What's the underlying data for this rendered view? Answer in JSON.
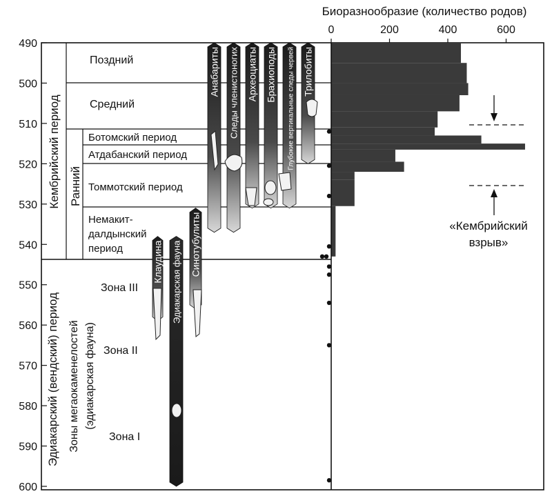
{
  "chart_data": {
    "type": "bar",
    "orientation": "horizontal",
    "title": "Биоразнообразие (количество родов)",
    "y_axis": {
      "ticks": [
        490,
        500,
        510,
        520,
        530,
        540,
        550,
        560,
        570,
        580,
        590,
        600
      ],
      "ylim": [
        490,
        600
      ]
    },
    "x_axis": {
      "ticks": [
        0,
        200,
        400,
        600
      ],
      "xlim": [
        0,
        650
      ]
    },
    "series": [
      {
        "from": 490,
        "to": 495,
        "value": 445
      },
      {
        "from": 495,
        "to": 500,
        "value": 465
      },
      {
        "from": 500,
        "to": 503,
        "value": 470
      },
      {
        "from": 503,
        "to": 507,
        "value": 440
      },
      {
        "from": 507,
        "to": 511,
        "value": 365
      },
      {
        "from": 511,
        "to": 513,
        "value": 355
      },
      {
        "from": 513,
        "to": 515,
        "value": 515
      },
      {
        "from": 515,
        "to": 516.5,
        "value": 665
      },
      {
        "from": 516.5,
        "to": 519.5,
        "value": 220
      },
      {
        "from": 519.5,
        "to": 522,
        "value": 250
      },
      {
        "from": 522,
        "to": 524,
        "value": 80
      },
      {
        "from": 524,
        "to": 530.5,
        "value": 80
      },
      {
        "from": 530.5,
        "to": 543,
        "value": 15
      }
    ],
    "ages": [
      512,
      520.5,
      528,
      540.5,
      543,
      543,
      545.5,
      547.5,
      554.5,
      565,
      598.5
    ],
    "annotation": "«Кембрийский взрыв»",
    "annotation_lines": [
      "«Кембрийский",
      "взрыв»"
    ]
  },
  "stratigraphy": {
    "cambrian_label": "Кембрийский период",
    "early_label": "Ранний",
    "ediacaran_label": "Эдиакарский (вендский) период",
    "zones_label_1": "Зоны мегаокаменелостей",
    "zones_label_2": "(эдиакарская фауна)",
    "late": "Поздний",
    "middle": "Средний",
    "botomian": "Ботомский период",
    "atdabanian": "Атдабанский период",
    "tommotian": "Томмотский период",
    "nemakit_1": "Немакит-",
    "nemakit_2": "далдынский",
    "nemakit_3": "период",
    "zone3": "Зона III",
    "zone2": "Зона II",
    "zone1": "Зона I"
  },
  "taxa": [
    {
      "name": "Клаудина",
      "top": 538,
      "bottom": 559
    },
    {
      "name": "Эдиакарская фауна",
      "top": 538,
      "bottom": 600
    },
    {
      "name": "Синотубулиты",
      "top": 531,
      "bottom": 556
    },
    {
      "name": "Анабариты",
      "top": 490,
      "bottom": 537
    },
    {
      "name": "Следы членистоногих",
      "top": 490,
      "bottom": 537
    },
    {
      "name": "Археоциаты",
      "top": 490,
      "bottom": 531
    },
    {
      "name": "Брахиоподы",
      "top": 490,
      "bottom": 531
    },
    {
      "name": "Глубокие вертикальные следы червей",
      "top": 490,
      "bottom": 531
    },
    {
      "name": "Трилобиты",
      "top": 490,
      "bottom": 520
    }
  ]
}
